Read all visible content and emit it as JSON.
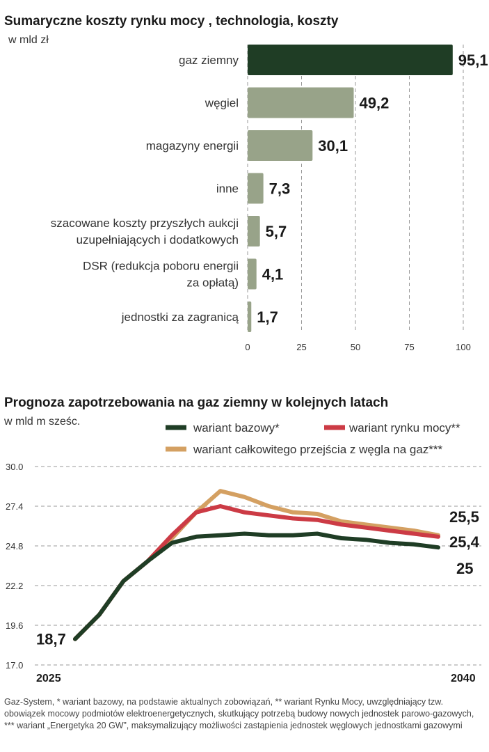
{
  "colors": {
    "bar_highlight": "#1f3d25",
    "bar_default": "#98a389",
    "series_base": "#1f3d25",
    "series_market": "#cc3b45",
    "series_transition": "#d4a062"
  },
  "chart_data": [
    {
      "type": "bar",
      "orientation": "horizontal",
      "title": "Sumaryczne koszty rynku mocy , technologia, koszty",
      "subtitle": "w mld zł",
      "categories": [
        [
          "gaz ziemny"
        ],
        [
          "węgiel"
        ],
        [
          "magazyny energii"
        ],
        [
          "inne"
        ],
        [
          "szacowane koszty przyszłych aukcji",
          "uzupełniających i dodatkowych"
        ],
        [
          "DSR (redukcja poboru energii",
          "za opłatą)"
        ],
        [
          "jednostki za zagranicą"
        ]
      ],
      "values": [
        95.1,
        49.2,
        30.1,
        7.3,
        5.7,
        4.1,
        1.7
      ],
      "value_labels": [
        "95,1",
        "49,2",
        "30,1",
        "7,3",
        "5,7",
        "4,1",
        "1,7"
      ],
      "xlim": [
        0,
        100
      ],
      "xticks": [
        0,
        25,
        50,
        75,
        100
      ],
      "xtick_labels": [
        "0",
        "25",
        "50",
        "75",
        "100"
      ],
      "grid": true
    },
    {
      "type": "line",
      "title": "Prognoza zapotrzebowania na gaz ziemny w kolejnych latach",
      "subtitle": "w mld m sześc.",
      "x": [
        2025,
        2026,
        2027,
        2028,
        2029,
        2030,
        2031,
        2032,
        2033,
        2034,
        2035,
        2036,
        2037,
        2038,
        2039,
        2040
      ],
      "x_labels": [
        "2025",
        "2040"
      ],
      "ylim": [
        17.0,
        30.0
      ],
      "yticks": [
        17.0,
        19.6,
        22.2,
        24.8,
        27.4,
        30.0
      ],
      "ytick_labels": [
        "17.0",
        "19.6",
        "22.2",
        "24.8",
        "27.4",
        "30.0"
      ],
      "start_label": "18,7",
      "series": [
        {
          "name": "wariant bazowy*",
          "key": "base",
          "values": [
            18.7,
            20.3,
            22.5,
            23.8,
            25.0,
            25.4,
            25.5,
            25.6,
            25.5,
            25.5,
            25.6,
            25.3,
            25.2,
            25.0,
            24.9,
            24.7
          ],
          "end_label": "25"
        },
        {
          "name": "wariant rynku mocy**",
          "key": "market",
          "values": [
            18.7,
            20.3,
            22.5,
            23.8,
            25.5,
            27.0,
            27.4,
            27.0,
            26.8,
            26.6,
            26.5,
            26.2,
            26.0,
            25.8,
            25.6,
            25.4
          ],
          "end_label": "25,4"
        },
        {
          "name": "wariant całkowitego przejścia z węgla na gaz***",
          "key": "transition",
          "values": [
            18.7,
            20.3,
            22.5,
            23.8,
            25.3,
            27.0,
            28.4,
            28.0,
            27.4,
            27.0,
            26.9,
            26.4,
            26.2,
            26.0,
            25.8,
            25.5
          ],
          "end_label": "25,5"
        }
      ]
    }
  ],
  "footer": "Gaz-System, * wariant bazowy, na podstawie aktualnych zobowiązań, ** wariant Rynku Mocy, uwzględniający tzw. obowiązek mocowy podmiotów elektroenergetycznych, skutkujący potrzebą budowy nowych jednostek parowo-gazowych, *** wariant „Energetyka 20 GW”, maksymalizujący możliwości zastąpienia jednostek węglowych jednostkami gazowymi"
}
